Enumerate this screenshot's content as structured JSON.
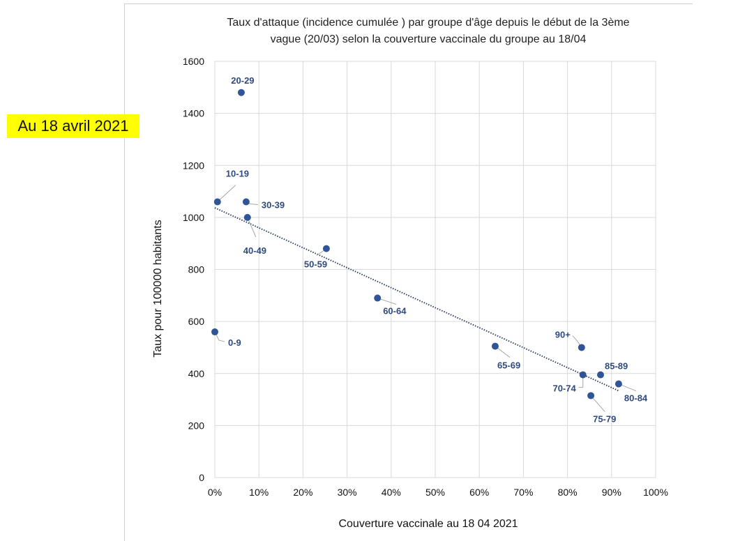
{
  "badge": {
    "text": "Au 18 avril 2021",
    "color": "#ffff00"
  },
  "colors": {
    "marker": "#2f5597",
    "label": "#2f4a7f",
    "trend": "#2f3f66",
    "grid": "#d9d9d9",
    "leader": "#a6a6a6"
  },
  "chart_data": {
    "type": "scatter",
    "title": [
      "Taux d'attaque (incidence cumulée ) par groupe d'âge depuis le début de la 3ème",
      "vague (20/03) selon la couverture vaccinale du groupe au 18/04"
    ],
    "xlabel": "Couverture vaccinale au 18 04 2021",
    "ylabel": "Taux  pour 100000 habitants",
    "xlim": [
      0,
      100
    ],
    "ylim": [
      0,
      1600
    ],
    "x_ticks": [
      "0%",
      "10%",
      "20%",
      "30%",
      "40%",
      "50%",
      "60%",
      "70%",
      "80%",
      "90%",
      "100%"
    ],
    "y_ticks": [
      "0",
      "200",
      "400",
      "600",
      "800",
      "1000",
      "1200",
      "1400",
      "1600"
    ],
    "grid": true,
    "legend": "none",
    "points": [
      {
        "label": "0-9",
        "x": 0,
        "y": 560
      },
      {
        "label": "10-19",
        "x": 0.6,
        "y": 1060
      },
      {
        "label": "20-29",
        "x": 6,
        "y": 1480
      },
      {
        "label": "30-39",
        "x": 7.1,
        "y": 1060
      },
      {
        "label": "40-49",
        "x": 7.4,
        "y": 1000
      },
      {
        "label": "50-59",
        "x": 25.3,
        "y": 880
      },
      {
        "label": "60-64",
        "x": 36.9,
        "y": 690
      },
      {
        "label": "65-69",
        "x": 63.6,
        "y": 505
      },
      {
        "label": "70-74",
        "x": 83.5,
        "y": 395
      },
      {
        "label": "75-79",
        "x": 85.3,
        "y": 315
      },
      {
        "label": "80-84",
        "x": 91.6,
        "y": 360
      },
      {
        "label": "85-89",
        "x": 87.5,
        "y": 395
      },
      {
        "label": "90+",
        "x": 83.2,
        "y": 500
      }
    ],
    "trendline": {
      "type": "linear",
      "style": "dotted",
      "x": [
        0,
        91.8
      ],
      "y": [
        1037,
        332
      ]
    }
  }
}
